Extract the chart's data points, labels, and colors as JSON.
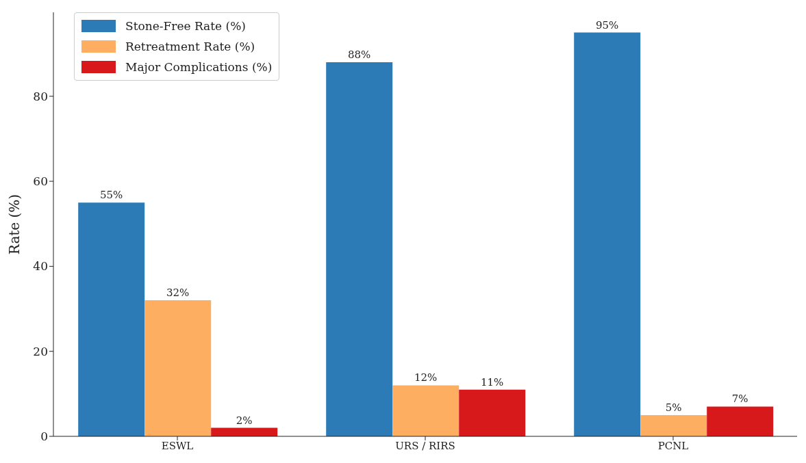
{
  "chart_data": {
    "type": "bar",
    "ylabel": "Rate (%)",
    "categories": [
      "ESWL",
      "URS / RIRS",
      "PCNL"
    ],
    "series": [
      {
        "name": "Stone-Free Rate (%)",
        "color": "#2c7bb6",
        "values": [
          55,
          88,
          95
        ],
        "value_labels": [
          "55%",
          "88%",
          "95%"
        ]
      },
      {
        "name": "Retreatment Rate (%)",
        "color": "#fdae61",
        "values": [
          32,
          12,
          5
        ],
        "value_labels": [
          "32%",
          "12%",
          "5%"
        ]
      },
      {
        "name": "Major Complications (%)",
        "color": "#d7191c",
        "values": [
          2,
          11,
          7
        ],
        "value_labels": [
          "2%",
          "11%",
          "7%"
        ]
      }
    ],
    "ylim": [
      0,
      99.75
    ],
    "yticks": [
      0,
      20,
      40,
      60,
      80
    ],
    "grid": false,
    "legend": "top left"
  }
}
